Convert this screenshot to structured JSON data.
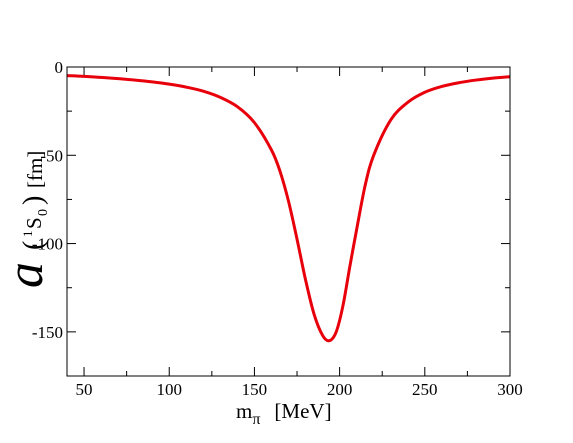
{
  "chart_data": {
    "type": "line",
    "xlabel": {
      "main": "m",
      "sub": "π",
      "unit": "[MeV]"
    },
    "ylabel": {
      "main": "a",
      "wave_sup": "1",
      "wave_main": "S",
      "wave_sub": "0",
      "unit": "[fm]"
    },
    "xlim": [
      40,
      300
    ],
    "ylim": [
      -175,
      0
    ],
    "x_ticks": [
      50,
      100,
      150,
      200,
      250,
      300
    ],
    "x_tick_labels": [
      "50",
      "100",
      "150",
      "200",
      "250",
      "300"
    ],
    "y_ticks": [
      0,
      -50,
      -100,
      -150
    ],
    "y_tick_labels": [
      "0",
      "-50",
      "-100",
      "-150"
    ],
    "grid": false,
    "series": [
      {
        "color": "#e8000b",
        "x": [
          40,
          50,
          60,
          70,
          80,
          90,
          100,
          110,
          120,
          130,
          140,
          150,
          160,
          165,
          170,
          175,
          180,
          185,
          190,
          194,
          198,
          202,
          206,
          210,
          215,
          220,
          230,
          240,
          250,
          260,
          270,
          280,
          290,
          300
        ],
        "y": [
          -4.9,
          -5.3,
          -5.9,
          -6.6,
          -7.4,
          -8.4,
          -9.7,
          -11.4,
          -13.7,
          -17.2,
          -22.5,
          -31.5,
          -47.0,
          -59.0,
          -76.0,
          -97.5,
          -120.5,
          -140.0,
          -152.0,
          -155.0,
          -150.0,
          -135.0,
          -113.0,
          -92.0,
          -67.0,
          -50.0,
          -30.0,
          -20.0,
          -14.3,
          -11.0,
          -8.9,
          -7.4,
          -6.3,
          -5.5
        ]
      }
    ]
  }
}
